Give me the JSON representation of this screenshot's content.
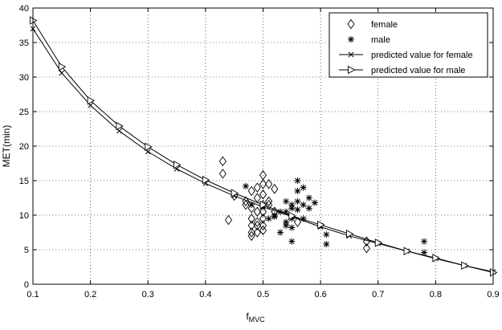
{
  "chart_data": {
    "type": "scatter",
    "xlabel": "f",
    "xlabel_sub": "MVC",
    "ylabel": "MET(min)",
    "xlim": [
      0.1,
      0.9
    ],
    "ylim": [
      0,
      40
    ],
    "xticks": [
      "0.1",
      "0.2",
      "0.3",
      "0.4",
      "0.5",
      "0.6",
      "0.7",
      "0.8",
      "0.9"
    ],
    "yticks": [
      "0",
      "5",
      "10",
      "15",
      "20",
      "25",
      "30",
      "35",
      "40"
    ],
    "grid": true,
    "legend_position": "top-right",
    "series": [
      {
        "name": "female",
        "marker": "diamond",
        "x": [
          0.43,
          0.43,
          0.44,
          0.45,
          0.47,
          0.47,
          0.48,
          0.48,
          0.48,
          0.48,
          0.48,
          0.48,
          0.49,
          0.49,
          0.49,
          0.49,
          0.49,
          0.49,
          0.5,
          0.5,
          0.5,
          0.5,
          0.5,
          0.5,
          0.5,
          0.5,
          0.51,
          0.51,
          0.51,
          0.52,
          0.52,
          0.56,
          0.68,
          0.68
        ],
        "y": [
          17.8,
          16.0,
          9.3,
          12.8,
          12.0,
          11.5,
          13.5,
          11.0,
          9.5,
          8.5,
          7.5,
          7.0,
          14.0,
          12.5,
          10.5,
          9.0,
          8.5,
          7.5,
          15.8,
          14.5,
          13.0,
          11.5,
          10.5,
          9.5,
          8.5,
          7.8,
          14.5,
          12.0,
          11.5,
          13.8,
          10.5,
          9.0,
          6.2,
          5.2
        ]
      },
      {
        "name": "male",
        "marker": "asterisk",
        "x": [
          0.47,
          0.48,
          0.51,
          0.52,
          0.52,
          0.53,
          0.53,
          0.54,
          0.54,
          0.54,
          0.54,
          0.55,
          0.55,
          0.55,
          0.55,
          0.55,
          0.56,
          0.56,
          0.56,
          0.56,
          0.57,
          0.57,
          0.57,
          0.58,
          0.58,
          0.59,
          0.6,
          0.61,
          0.61,
          0.78,
          0.78
        ],
        "y": [
          14.2,
          11.5,
          9.5,
          10.0,
          9.8,
          10.5,
          7.5,
          8.5,
          9.0,
          10.5,
          12.0,
          8.2,
          9.5,
          6.2,
          11.0,
          11.5,
          15.0,
          12.0,
          13.5,
          10.8,
          14.0,
          11.5,
          9.5,
          11.0,
          12.5,
          11.8,
          8.5,
          7.2,
          5.8,
          6.2,
          4.6
        ]
      },
      {
        "name": "predicted value for female",
        "marker": "x",
        "x": [
          0.1,
          0.15,
          0.2,
          0.25,
          0.3,
          0.35,
          0.4,
          0.45,
          0.5,
          0.55,
          0.6,
          0.65,
          0.7,
          0.75,
          0.8,
          0.85,
          0.9
        ],
        "y": [
          37.0,
          30.6,
          25.9,
          22.2,
          19.2,
          16.7,
          14.6,
          12.8,
          11.2,
          9.8,
          8.3,
          7.0,
          5.9,
          4.8,
          3.7,
          2.7,
          1.8
        ]
      },
      {
        "name": "predicted value for male",
        "marker": "triangle-right",
        "x": [
          0.1,
          0.15,
          0.2,
          0.25,
          0.3,
          0.35,
          0.4,
          0.45,
          0.5,
          0.55,
          0.6,
          0.65,
          0.7,
          0.75,
          0.8,
          0.85,
          0.9
        ],
        "y": [
          38.2,
          31.5,
          26.6,
          22.9,
          19.9,
          17.3,
          15.1,
          13.2,
          11.5,
          9.9,
          8.6,
          7.3,
          6.0,
          4.8,
          3.8,
          2.7,
          1.7
        ]
      }
    ]
  }
}
